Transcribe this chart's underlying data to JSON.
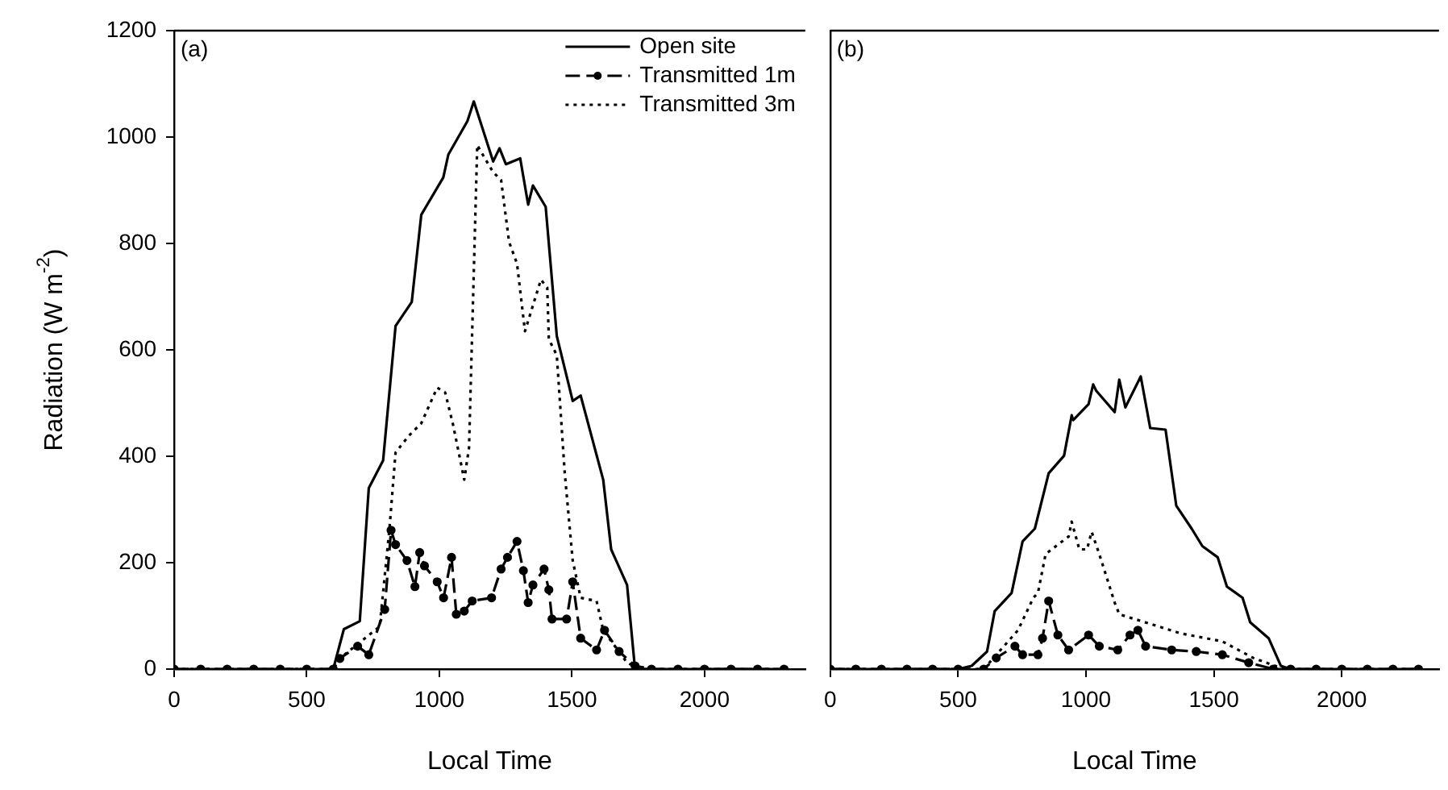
{
  "chart_data": [
    {
      "type": "line",
      "annotations": [
        "(a)"
      ],
      "xlabel": "Local Time",
      "ylabel": "Radiation (W m$^{-2}$)",
      "xlim": [
        0,
        2380
      ],
      "xticks": [
        0,
        500,
        1000,
        1500,
        2000
      ],
      "ylim": [
        0,
        1200
      ],
      "yticks": [
        0,
        200,
        400,
        600,
        800,
        1000,
        1200
      ],
      "legend": "top right",
      "grid": false,
      "series": [
        {
          "name": "Open site",
          "color": "#000000",
          "line_style": "solid",
          "marker": "none",
          "x": [
            0,
            100,
            200,
            300,
            400,
            500,
            600,
            640,
            700,
            734,
            788,
            835,
            896,
            932,
            1015,
            1034,
            1106,
            1130,
            1203,
            1227,
            1251,
            1305,
            1335,
            1353,
            1401,
            1443,
            1503,
            1533,
            1618,
            1648,
            1708,
            1738,
            1800,
            1900,
            2000,
            2100,
            2200,
            2300
          ],
          "values": [
            0,
            0,
            0,
            0,
            0,
            0,
            0,
            75,
            90,
            340,
            392,
            645,
            690,
            854,
            924,
            967,
            1030,
            1067,
            954,
            979,
            949,
            960,
            873,
            909,
            869,
            626,
            504,
            514,
            356,
            225,
            158,
            0,
            0,
            0,
            0,
            0,
            0,
            0
          ]
        },
        {
          "name": "Transmitted 1m",
          "color": "#000000",
          "line_style": "dashed",
          "marker": "circle",
          "x": [
            0,
            100,
            200,
            300,
            400,
            500,
            600,
            625,
            692,
            734,
            794,
            818,
            835,
            878,
            908,
            926,
            944,
            992,
            1016,
            1046,
            1064,
            1094,
            1124,
            1197,
            1233,
            1257,
            1293,
            1317,
            1335,
            1353,
            1395,
            1413,
            1425,
            1480,
            1503,
            1533,
            1593,
            1623,
            1678,
            1738,
            1800,
            1900,
            2000,
            2100,
            2200,
            2300
          ],
          "values": [
            0,
            0,
            0,
            0,
            0,
            0,
            0,
            20,
            43,
            27,
            112,
            261,
            234,
            204,
            155,
            219,
            194,
            164,
            134,
            210,
            103,
            109,
            128,
            134,
            188,
            210,
            240,
            185,
            125,
            158,
            188,
            149,
            94,
            94,
            164,
            58,
            36,
            73,
            33,
            6,
            0,
            0,
            0,
            0,
            0,
            0
          ]
        },
        {
          "name": "Transmitted 3m",
          "color": "#000000",
          "line_style": "dotted",
          "marker": "none",
          "x": [
            0,
            100,
            200,
            300,
            400,
            500,
            600,
            625,
            775,
            812,
            835,
            884,
            932,
            992,
            1022,
            1052,
            1094,
            1112,
            1143,
            1167,
            1203,
            1233,
            1263,
            1293,
            1323,
            1383,
            1407,
            1413,
            1443,
            1473,
            1503,
            1533,
            1593,
            1618,
            1708,
            1756,
            1800,
            1900,
            2000,
            2100,
            2200,
            2300
          ],
          "values": [
            0,
            0,
            0,
            0,
            0,
            0,
            0,
            20,
            80,
            264,
            407,
            438,
            462,
            529,
            520,
            459,
            356,
            416,
            985,
            964,
            934,
            919,
            803,
            762,
            635,
            732,
            717,
            620,
            590,
            368,
            204,
            134,
            128,
            73,
            12,
            0,
            0,
            0,
            0,
            0,
            0,
            0
          ]
        }
      ]
    },
    {
      "type": "line",
      "annotations": [
        "(b)"
      ],
      "xlabel": "Local Time",
      "xlim": [
        0,
        2380
      ],
      "xticks": [
        0,
        500,
        1000,
        1500,
        2000
      ],
      "ylim": [
        0,
        1200
      ],
      "yticks": [
        0,
        200,
        400,
        600,
        800,
        1000,
        1200
      ],
      "tick_labels": "x",
      "grid": false,
      "series": [
        {
          "color": "#000000",
          "line_style": "solid",
          "marker": "none",
          "x": [
            0,
            100,
            200,
            300,
            400,
            500,
            553,
            613,
            643,
            709,
            752,
            800,
            854,
            914,
            944,
            950,
            1010,
            1028,
            1040,
            1112,
            1130,
            1154,
            1214,
            1251,
            1311,
            1353,
            1413,
            1455,
            1515,
            1551,
            1612,
            1642,
            1714,
            1762,
            1800,
            1900,
            2000,
            2100,
            2200,
            2300
          ],
          "values": [
            0,
            0,
            0,
            0,
            0,
            0,
            6,
            33,
            109,
            143,
            240,
            264,
            368,
            401,
            477,
            468,
            498,
            535,
            523,
            483,
            544,
            492,
            550,
            453,
            450,
            307,
            264,
            231,
            210,
            155,
            134,
            88,
            58,
            6,
            0,
            0,
            0,
            0,
            0,
            0
          ]
        },
        {
          "color": "#000000",
          "line_style": "dashed",
          "marker": "circle",
          "x": [
            0,
            100,
            200,
            300,
            400,
            500,
            600,
            649,
            722,
            752,
            812,
            830,
            854,
            890,
            932,
            1010,
            1052,
            1124,
            1172,
            1203,
            1233,
            1335,
            1431,
            1533,
            1636,
            1732,
            1800,
            1900,
            2000,
            2100,
            2200,
            2300
          ],
          "values": [
            0,
            0,
            0,
            0,
            0,
            0,
            0,
            21,
            43,
            27,
            27,
            58,
            128,
            64,
            36,
            64,
            43,
            36,
            64,
            73,
            43,
            36,
            33,
            27,
            12,
            0,
            0,
            0,
            0,
            0,
            0,
            0
          ]
        },
        {
          "color": "#000000",
          "line_style": "dotted",
          "marker": "none",
          "x": [
            0,
            100,
            200,
            300,
            400,
            500,
            600,
            734,
            794,
            812,
            842,
            890,
            932,
            944,
            974,
            1004,
            1022,
            1052,
            1112,
            1130,
            1371,
            1533,
            1654,
            1774,
            1800,
            1900,
            2000,
            2100,
            2200,
            2300
          ],
          "values": [
            0,
            0,
            0,
            0,
            0,
            0,
            0,
            73,
            134,
            143,
            216,
            234,
            249,
            277,
            225,
            225,
            258,
            216,
            125,
            103,
            67,
            52,
            21,
            0,
            0,
            0,
            0,
            0,
            0,
            0
          ]
        }
      ]
    }
  ]
}
